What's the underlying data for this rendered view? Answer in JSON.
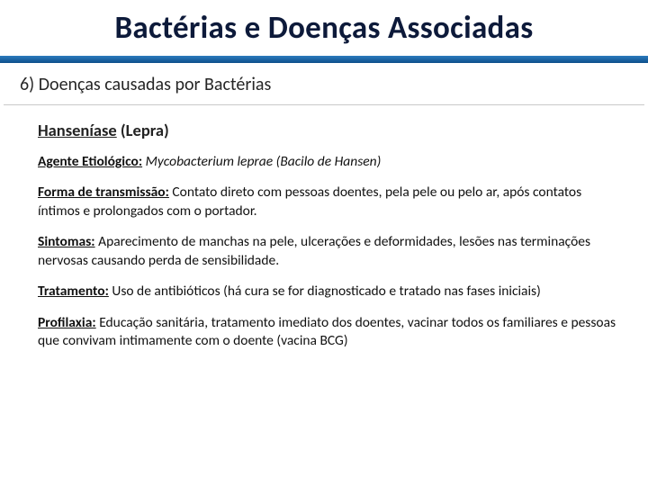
{
  "colors": {
    "title_text": "#0d1a3a",
    "blue_bar_top": "#2b7bbd",
    "blue_bar_bottom": "#0d4f8b",
    "divider": "#c9c9c9",
    "body_text": "#111111",
    "background": "#ffffff"
  },
  "typography": {
    "title_fontsize": 35,
    "section_fontsize": 20,
    "disease_fontsize": 18.5,
    "body_fontsize": 15.5,
    "font_family": "Calibri"
  },
  "title": "Bactérias e Doenças Associadas",
  "section": "6) Doenças causadas por Bactérias",
  "disease": {
    "name_underlined": "Hanseníase",
    "name_suffix": " (Lepra)"
  },
  "fields": {
    "agente": {
      "label": "Agente Etiológico:",
      "text_italic": "Mycobacterium leprae (Bacilo de Hansen)"
    },
    "transmissao": {
      "label": "Forma de transmissão:",
      "text": "Contato direto com pessoas doentes, pela pele ou pelo ar, após contatos íntimos e prolongados com o portador."
    },
    "sintomas": {
      "label": "Sintomas:",
      "text": "Aparecimento de manchas na pele, ulcerações e deformidades, lesões nas terminações nervosas causando perda de sensibilidade."
    },
    "tratamento": {
      "label": "Tratamento:",
      "text": "Uso de antibióticos (há cura se for diagnosticado  e tratado nas fases iniciais)"
    },
    "profilaxia": {
      "label": "Profilaxia:",
      "text": "Educação sanitária, tratamento imediato dos doentes, vacinar todos os familiares e pessoas que convivam intimamente com o doente (vacina BCG)"
    }
  }
}
